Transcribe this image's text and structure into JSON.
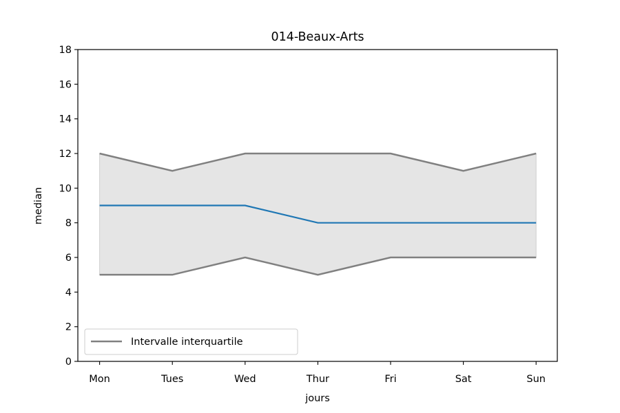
{
  "chart_data": {
    "type": "line",
    "title": "014-Beaux-Arts",
    "xlabel": "jours",
    "ylabel": "median",
    "categories": [
      "Mon",
      "Tues",
      "Wed",
      "Thur",
      "Fri",
      "Sat",
      "Sun"
    ],
    "ylim": [
      0,
      18
    ],
    "yticks": [
      0,
      2,
      4,
      6,
      8,
      10,
      12,
      14,
      16,
      18
    ],
    "grid": false,
    "legend_position": "lower-left",
    "series": [
      {
        "values": [
          9,
          9,
          9,
          8,
          8,
          8,
          8
        ],
        "color": "#1f77b4"
      }
    ],
    "band": {
      "name": "Intervalle interquartile",
      "upper": [
        12,
        11,
        12,
        12,
        12,
        11,
        12
      ],
      "lower": [
        5,
        5,
        6,
        5,
        6,
        6,
        6
      ],
      "line_color": "#808080",
      "fill_color": "#e5e5e5"
    }
  }
}
